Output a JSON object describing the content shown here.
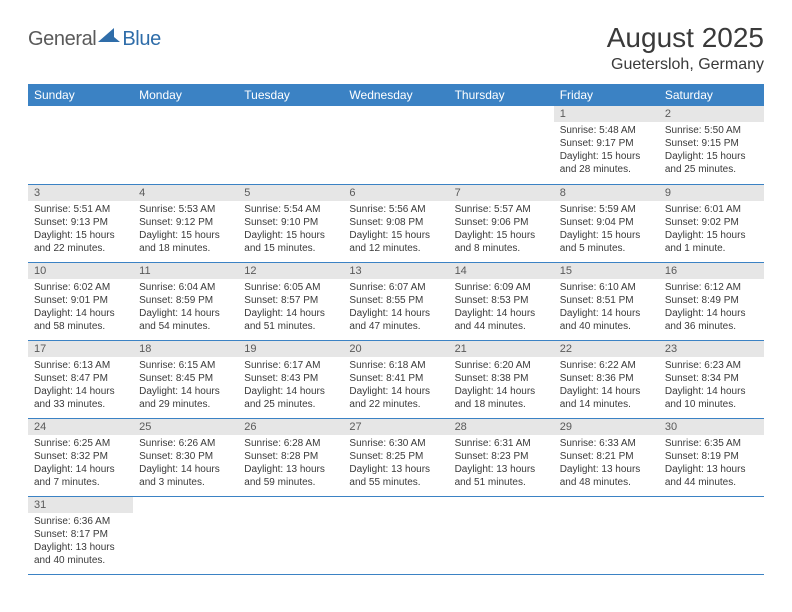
{
  "logo": {
    "text_general": "General",
    "text_blue": "Blue",
    "icon_color": "#2f6da9"
  },
  "header": {
    "title": "August 2025",
    "location": "Guetersloh, Germany"
  },
  "colors": {
    "header_bg": "#3b82c4",
    "header_text": "#ffffff",
    "daynum_bg": "#e6e6e6",
    "daynum_text": "#5a5a5a",
    "body_text": "#3a3a3a",
    "row_border": "#3b82c4"
  },
  "weekdays": [
    "Sunday",
    "Monday",
    "Tuesday",
    "Wednesday",
    "Thursday",
    "Friday",
    "Saturday"
  ],
  "weeks": [
    [
      {
        "empty": true
      },
      {
        "empty": true
      },
      {
        "empty": true
      },
      {
        "empty": true
      },
      {
        "empty": true
      },
      {
        "day": "1",
        "sunrise": "Sunrise: 5:48 AM",
        "sunset": "Sunset: 9:17 PM",
        "daylight1": "Daylight: 15 hours",
        "daylight2": "and 28 minutes."
      },
      {
        "day": "2",
        "sunrise": "Sunrise: 5:50 AM",
        "sunset": "Sunset: 9:15 PM",
        "daylight1": "Daylight: 15 hours",
        "daylight2": "and 25 minutes."
      }
    ],
    [
      {
        "day": "3",
        "sunrise": "Sunrise: 5:51 AM",
        "sunset": "Sunset: 9:13 PM",
        "daylight1": "Daylight: 15 hours",
        "daylight2": "and 22 minutes."
      },
      {
        "day": "4",
        "sunrise": "Sunrise: 5:53 AM",
        "sunset": "Sunset: 9:12 PM",
        "daylight1": "Daylight: 15 hours",
        "daylight2": "and 18 minutes."
      },
      {
        "day": "5",
        "sunrise": "Sunrise: 5:54 AM",
        "sunset": "Sunset: 9:10 PM",
        "daylight1": "Daylight: 15 hours",
        "daylight2": "and 15 minutes."
      },
      {
        "day": "6",
        "sunrise": "Sunrise: 5:56 AM",
        "sunset": "Sunset: 9:08 PM",
        "daylight1": "Daylight: 15 hours",
        "daylight2": "and 12 minutes."
      },
      {
        "day": "7",
        "sunrise": "Sunrise: 5:57 AM",
        "sunset": "Sunset: 9:06 PM",
        "daylight1": "Daylight: 15 hours",
        "daylight2": "and 8 minutes."
      },
      {
        "day": "8",
        "sunrise": "Sunrise: 5:59 AM",
        "sunset": "Sunset: 9:04 PM",
        "daylight1": "Daylight: 15 hours",
        "daylight2": "and 5 minutes."
      },
      {
        "day": "9",
        "sunrise": "Sunrise: 6:01 AM",
        "sunset": "Sunset: 9:02 PM",
        "daylight1": "Daylight: 15 hours",
        "daylight2": "and 1 minute."
      }
    ],
    [
      {
        "day": "10",
        "sunrise": "Sunrise: 6:02 AM",
        "sunset": "Sunset: 9:01 PM",
        "daylight1": "Daylight: 14 hours",
        "daylight2": "and 58 minutes."
      },
      {
        "day": "11",
        "sunrise": "Sunrise: 6:04 AM",
        "sunset": "Sunset: 8:59 PM",
        "daylight1": "Daylight: 14 hours",
        "daylight2": "and 54 minutes."
      },
      {
        "day": "12",
        "sunrise": "Sunrise: 6:05 AM",
        "sunset": "Sunset: 8:57 PM",
        "daylight1": "Daylight: 14 hours",
        "daylight2": "and 51 minutes."
      },
      {
        "day": "13",
        "sunrise": "Sunrise: 6:07 AM",
        "sunset": "Sunset: 8:55 PM",
        "daylight1": "Daylight: 14 hours",
        "daylight2": "and 47 minutes."
      },
      {
        "day": "14",
        "sunrise": "Sunrise: 6:09 AM",
        "sunset": "Sunset: 8:53 PM",
        "daylight1": "Daylight: 14 hours",
        "daylight2": "and 44 minutes."
      },
      {
        "day": "15",
        "sunrise": "Sunrise: 6:10 AM",
        "sunset": "Sunset: 8:51 PM",
        "daylight1": "Daylight: 14 hours",
        "daylight2": "and 40 minutes."
      },
      {
        "day": "16",
        "sunrise": "Sunrise: 6:12 AM",
        "sunset": "Sunset: 8:49 PM",
        "daylight1": "Daylight: 14 hours",
        "daylight2": "and 36 minutes."
      }
    ],
    [
      {
        "day": "17",
        "sunrise": "Sunrise: 6:13 AM",
        "sunset": "Sunset: 8:47 PM",
        "daylight1": "Daylight: 14 hours",
        "daylight2": "and 33 minutes."
      },
      {
        "day": "18",
        "sunrise": "Sunrise: 6:15 AM",
        "sunset": "Sunset: 8:45 PM",
        "daylight1": "Daylight: 14 hours",
        "daylight2": "and 29 minutes."
      },
      {
        "day": "19",
        "sunrise": "Sunrise: 6:17 AM",
        "sunset": "Sunset: 8:43 PM",
        "daylight1": "Daylight: 14 hours",
        "daylight2": "and 25 minutes."
      },
      {
        "day": "20",
        "sunrise": "Sunrise: 6:18 AM",
        "sunset": "Sunset: 8:41 PM",
        "daylight1": "Daylight: 14 hours",
        "daylight2": "and 22 minutes."
      },
      {
        "day": "21",
        "sunrise": "Sunrise: 6:20 AM",
        "sunset": "Sunset: 8:38 PM",
        "daylight1": "Daylight: 14 hours",
        "daylight2": "and 18 minutes."
      },
      {
        "day": "22",
        "sunrise": "Sunrise: 6:22 AM",
        "sunset": "Sunset: 8:36 PM",
        "daylight1": "Daylight: 14 hours",
        "daylight2": "and 14 minutes."
      },
      {
        "day": "23",
        "sunrise": "Sunrise: 6:23 AM",
        "sunset": "Sunset: 8:34 PM",
        "daylight1": "Daylight: 14 hours",
        "daylight2": "and 10 minutes."
      }
    ],
    [
      {
        "day": "24",
        "sunrise": "Sunrise: 6:25 AM",
        "sunset": "Sunset: 8:32 PM",
        "daylight1": "Daylight: 14 hours",
        "daylight2": "and 7 minutes."
      },
      {
        "day": "25",
        "sunrise": "Sunrise: 6:26 AM",
        "sunset": "Sunset: 8:30 PM",
        "daylight1": "Daylight: 14 hours",
        "daylight2": "and 3 minutes."
      },
      {
        "day": "26",
        "sunrise": "Sunrise: 6:28 AM",
        "sunset": "Sunset: 8:28 PM",
        "daylight1": "Daylight: 13 hours",
        "daylight2": "and 59 minutes."
      },
      {
        "day": "27",
        "sunrise": "Sunrise: 6:30 AM",
        "sunset": "Sunset: 8:25 PM",
        "daylight1": "Daylight: 13 hours",
        "daylight2": "and 55 minutes."
      },
      {
        "day": "28",
        "sunrise": "Sunrise: 6:31 AM",
        "sunset": "Sunset: 8:23 PM",
        "daylight1": "Daylight: 13 hours",
        "daylight2": "and 51 minutes."
      },
      {
        "day": "29",
        "sunrise": "Sunrise: 6:33 AM",
        "sunset": "Sunset: 8:21 PM",
        "daylight1": "Daylight: 13 hours",
        "daylight2": "and 48 minutes."
      },
      {
        "day": "30",
        "sunrise": "Sunrise: 6:35 AM",
        "sunset": "Sunset: 8:19 PM",
        "daylight1": "Daylight: 13 hours",
        "daylight2": "and 44 minutes."
      }
    ],
    [
      {
        "day": "31",
        "sunrise": "Sunrise: 6:36 AM",
        "sunset": "Sunset: 8:17 PM",
        "daylight1": "Daylight: 13 hours",
        "daylight2": "and 40 minutes."
      },
      {
        "empty": true
      },
      {
        "empty": true
      },
      {
        "empty": true
      },
      {
        "empty": true
      },
      {
        "empty": true
      },
      {
        "empty": true
      }
    ]
  ]
}
